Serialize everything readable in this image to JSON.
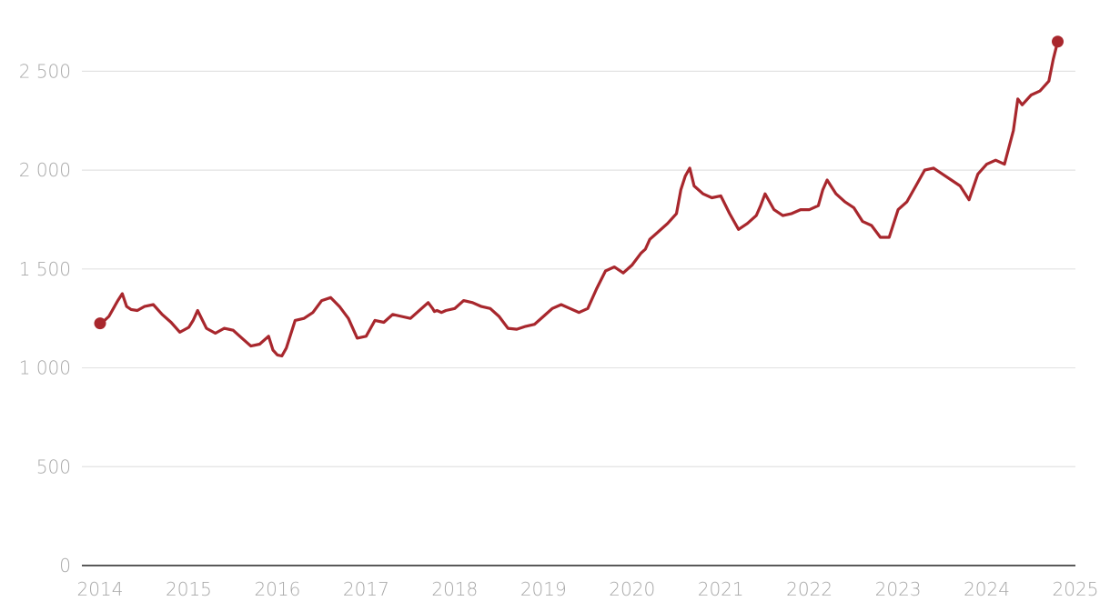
{
  "chart_data": {
    "type": "line",
    "title": "",
    "xlabel": "",
    "ylabel": "",
    "xlim": [
      2014,
      2025
    ],
    "ylim": [
      0,
      2750
    ],
    "grid": true,
    "legend": "none",
    "x_ticks": [
      2014,
      2015,
      2016,
      2017,
      2018,
      2019,
      2020,
      2021,
      2022,
      2023,
      2024,
      2025
    ],
    "x_tick_labels": [
      "2014",
      "2015",
      "2016",
      "2017",
      "2018",
      "2019",
      "2020",
      "2021",
      "2022",
      "2023",
      "2024",
      "2025"
    ],
    "y_ticks": [
      0,
      500,
      1000,
      1500,
      2000,
      2500
    ],
    "y_tick_labels": [
      "0",
      "500",
      "1 000",
      "1 500",
      "2 000",
      "2 500"
    ],
    "colors": {
      "series": "#a8272d",
      "grid": "#e3e3e3",
      "axis": "#222222",
      "tick_text": "#a8a8a8"
    },
    "series": [
      {
        "x": [
          2014.0,
          2014.05,
          2014.1,
          2014.15,
          2014.2,
          2014.25,
          2014.3,
          2014.35,
          2014.42,
          2014.5,
          2014.6,
          2014.7,
          2014.8,
          2014.9,
          2015.0,
          2015.05,
          2015.1,
          2015.2,
          2015.3,
          2015.4,
          2015.5,
          2015.6,
          2015.7,
          2015.8,
          2015.9,
          2015.95,
          2016.0,
          2016.05,
          2016.1,
          2016.2,
          2016.3,
          2016.4,
          2016.5,
          2016.6,
          2016.7,
          2016.8,
          2016.9,
          2017.0,
          2017.1,
          2017.2,
          2017.3,
          2017.4,
          2017.5,
          2017.7,
          2017.75,
          2017.77,
          2017.8,
          2017.85,
          2017.9,
          2018.0,
          2018.1,
          2018.2,
          2018.3,
          2018.4,
          2018.5,
          2018.6,
          2018.7,
          2018.8,
          2018.9,
          2019.0,
          2019.1,
          2019.2,
          2019.3,
          2019.4,
          2019.5,
          2019.6,
          2019.7,
          2019.8,
          2019.9,
          2020.0,
          2020.1,
          2020.15,
          2020.2,
          2020.3,
          2020.4,
          2020.5,
          2020.55,
          2020.6,
          2020.65,
          2020.7,
          2020.8,
          2020.9,
          2021.0,
          2021.1,
          2021.2,
          2021.3,
          2021.4,
          2021.45,
          2021.5,
          2021.6,
          2021.7,
          2021.8,
          2021.9,
          2022.0,
          2022.1,
          2022.15,
          2022.2,
          2022.3,
          2022.4,
          2022.5,
          2022.6,
          2022.7,
          2022.8,
          2022.9,
          2023.0,
          2023.1,
          2023.2,
          2023.3,
          2023.4,
          2023.5,
          2023.6,
          2023.7,
          2023.8,
          2023.9,
          2024.0,
          2024.1,
          2024.2,
          2024.3,
          2024.35,
          2024.4,
          2024.5,
          2024.6,
          2024.7,
          2024.75,
          2024.8
        ],
        "y": [
          1225,
          1240,
          1260,
          1300,
          1340,
          1375,
          1310,
          1295,
          1290,
          1310,
          1320,
          1270,
          1230,
          1180,
          1205,
          1240,
          1290,
          1200,
          1175,
          1200,
          1190,
          1150,
          1110,
          1120,
          1160,
          1090,
          1065,
          1060,
          1100,
          1240,
          1250,
          1280,
          1340,
          1355,
          1310,
          1250,
          1150,
          1160,
          1240,
          1230,
          1270,
          1260,
          1250,
          1330,
          1300,
          1285,
          1290,
          1280,
          1290,
          1300,
          1340,
          1330,
          1310,
          1300,
          1260,
          1200,
          1195,
          1210,
          1220,
          1260,
          1300,
          1320,
          1300,
          1280,
          1300,
          1400,
          1490,
          1510,
          1480,
          1520,
          1580,
          1600,
          1650,
          1690,
          1730,
          1780,
          1900,
          1970,
          2010,
          1920,
          1880,
          1860,
          1870,
          1780,
          1700,
          1730,
          1770,
          1820,
          1880,
          1800,
          1770,
          1780,
          1800,
          1800,
          1820,
          1900,
          1950,
          1880,
          1840,
          1810,
          1740,
          1720,
          1660,
          1660,
          1800,
          1840,
          1920,
          2000,
          2010,
          1980,
          1950,
          1920,
          1850,
          1980,
          2030,
          2050,
          2030,
          2200,
          2360,
          2330,
          2380,
          2400,
          2450,
          2560,
          2650
        ]
      }
    ]
  }
}
